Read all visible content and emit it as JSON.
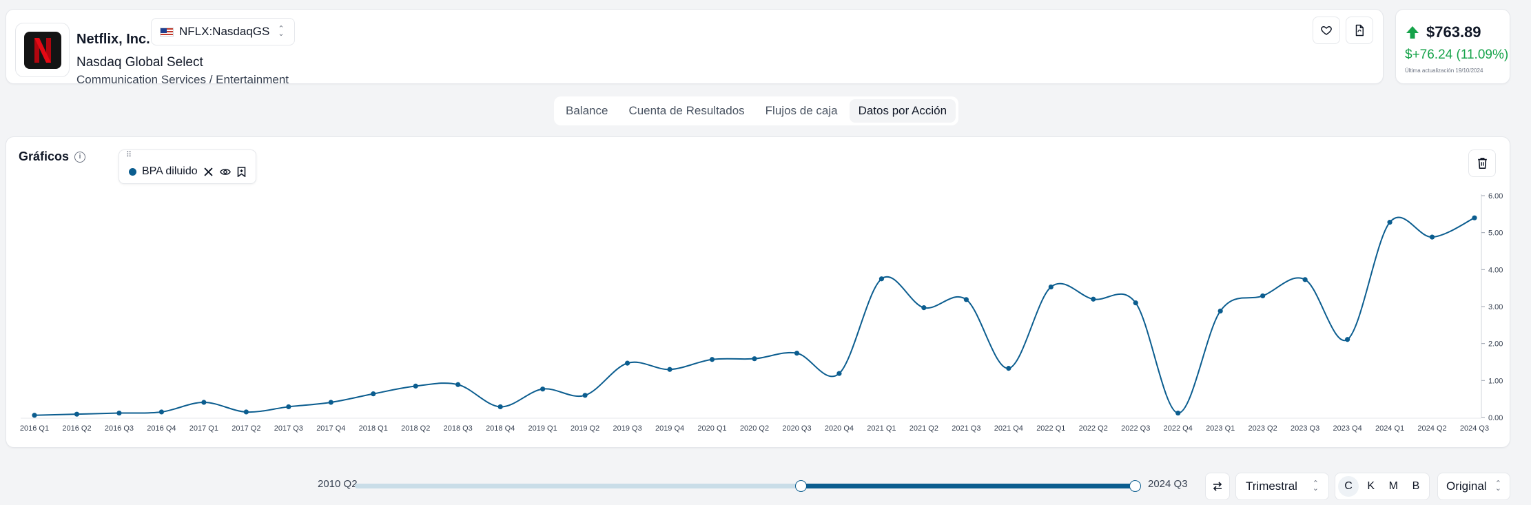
{
  "company": {
    "name": "Netflix, Inc.",
    "ticker": "NFLX:NasdaqGS",
    "exchange": "Nasdaq Global Select",
    "sector": "Communication Services / Entertainment",
    "logo_letter": "N"
  },
  "price": {
    "value": "$763.89",
    "change": "$+76.24 (11.09%)",
    "updated": "Última actualización 19/10/2024",
    "change_color": "#16a34a"
  },
  "tabs": [
    {
      "label": "Balance",
      "active": false
    },
    {
      "label": "Cuenta de Resultados",
      "active": false
    },
    {
      "label": "Flujos de caja",
      "active": false
    },
    {
      "label": "Datos por Acción",
      "active": true
    }
  ],
  "charts_panel": {
    "title": "Gráficos",
    "legend_label": "BPA diluido"
  },
  "chart_data": {
    "type": "line",
    "smooth": true,
    "series": [
      {
        "name": "BPA diluido",
        "color": "#0b5d8f",
        "values": [
          0.06,
          0.09,
          0.12,
          0.15,
          0.41,
          0.15,
          0.29,
          0.41,
          0.64,
          0.85,
          0.89,
          0.29,
          0.77,
          0.6,
          1.47,
          1.3,
          1.57,
          1.59,
          1.74,
          1.19,
          3.75,
          2.97,
          3.19,
          1.33,
          3.53,
          3.2,
          3.1,
          0.12,
          2.88,
          3.29,
          3.73,
          2.11,
          5.28,
          4.88,
          5.4
        ]
      }
    ],
    "categories": [
      "2016 Q1",
      "2016 Q2",
      "2016 Q3",
      "2016 Q4",
      "2017 Q1",
      "2017 Q2",
      "2017 Q3",
      "2017 Q4",
      "2018 Q1",
      "2018 Q2",
      "2018 Q3",
      "2018 Q4",
      "2019 Q1",
      "2019 Q2",
      "2019 Q3",
      "2019 Q4",
      "2020 Q1",
      "2020 Q2",
      "2020 Q3",
      "2020 Q4",
      "2021 Q1",
      "2021 Q2",
      "2021 Q3",
      "2021 Q4",
      "2022 Q1",
      "2022 Q2",
      "2022 Q3",
      "2022 Q4",
      "2023 Q1",
      "2023 Q2",
      "2023 Q3",
      "2023 Q4",
      "2024 Q1",
      "2024 Q2",
      "2024 Q3"
    ],
    "ylim": [
      0,
      6
    ],
    "yticks": [
      "0.00",
      "1.00",
      "2.00",
      "3.00",
      "4.00",
      "5.00",
      "6.00"
    ],
    "grid": false,
    "y_axis_position": "right"
  },
  "range": {
    "start_label": "2010 Q2",
    "end_label": "2024 Q3",
    "selected_from_fraction": 0.57,
    "selected_to_fraction": 0.9975
  },
  "controls": {
    "frequency": "Trimestral",
    "units": [
      "C",
      "K",
      "M",
      "B"
    ],
    "active_unit": "C",
    "scale": "Original"
  }
}
